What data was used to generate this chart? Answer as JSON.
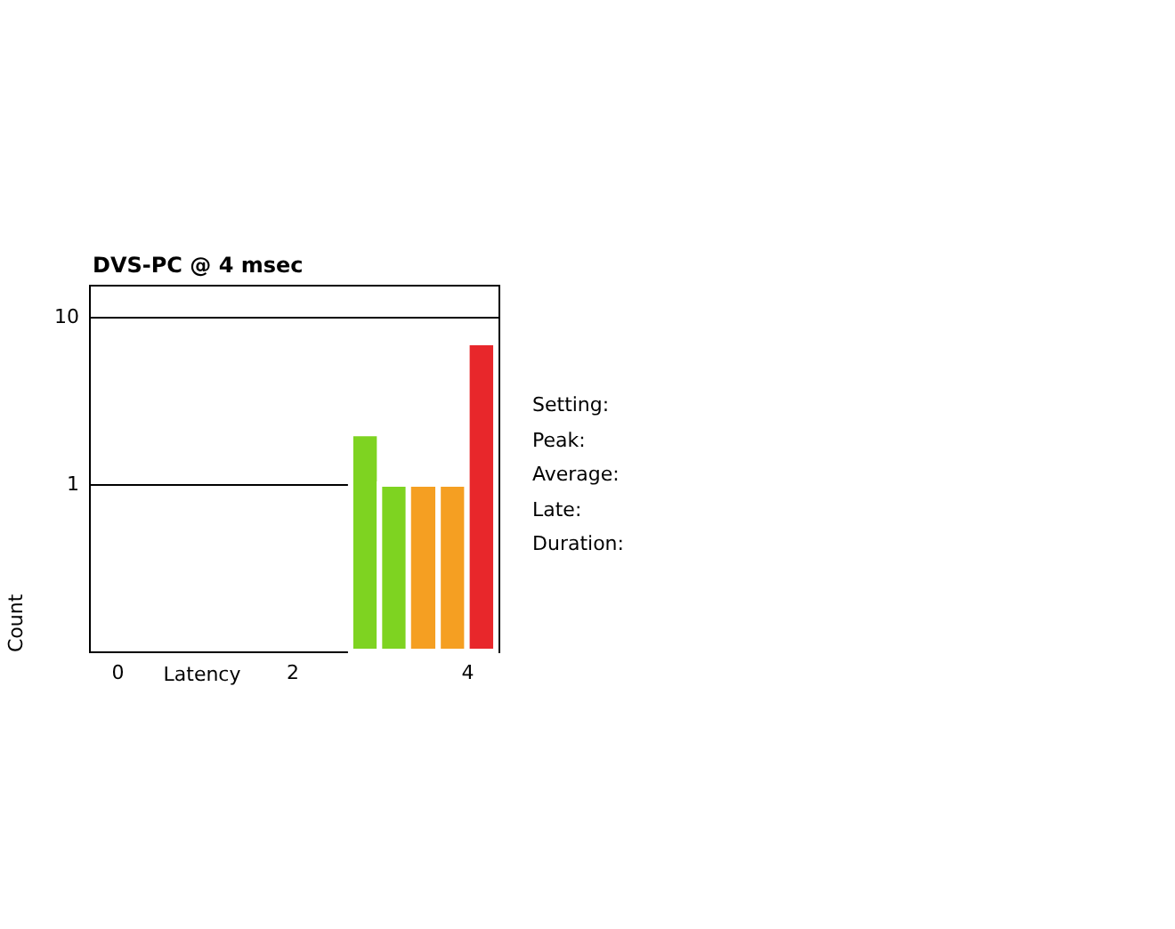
{
  "chart_data": {
    "type": "histogram",
    "title": "DVS-PC @ 4 msec",
    "xlabel": "Latency",
    "ylabel": "Count",
    "bins": [
      2.67,
      3.0,
      3.33,
      3.67,
      4.0,
      4.33
    ],
    "values": [
      2,
      1,
      1,
      1,
      7
    ],
    "colors": [
      "#7ed321",
      "#7ed321",
      "#f59f22",
      "#f59f22",
      "#e8272b"
    ],
    "xlim": [
      -0.32,
      4.36
    ],
    "xticks": [
      0,
      2,
      4
    ],
    "ylim": [
      0.1,
      15.5
    ],
    "yticks": [
      1,
      10
    ],
    "log": true,
    "grid": "y",
    "annotations": [
      "Setting:",
      "Peak:",
      "Average:",
      "Late:",
      "Duration:"
    ]
  }
}
